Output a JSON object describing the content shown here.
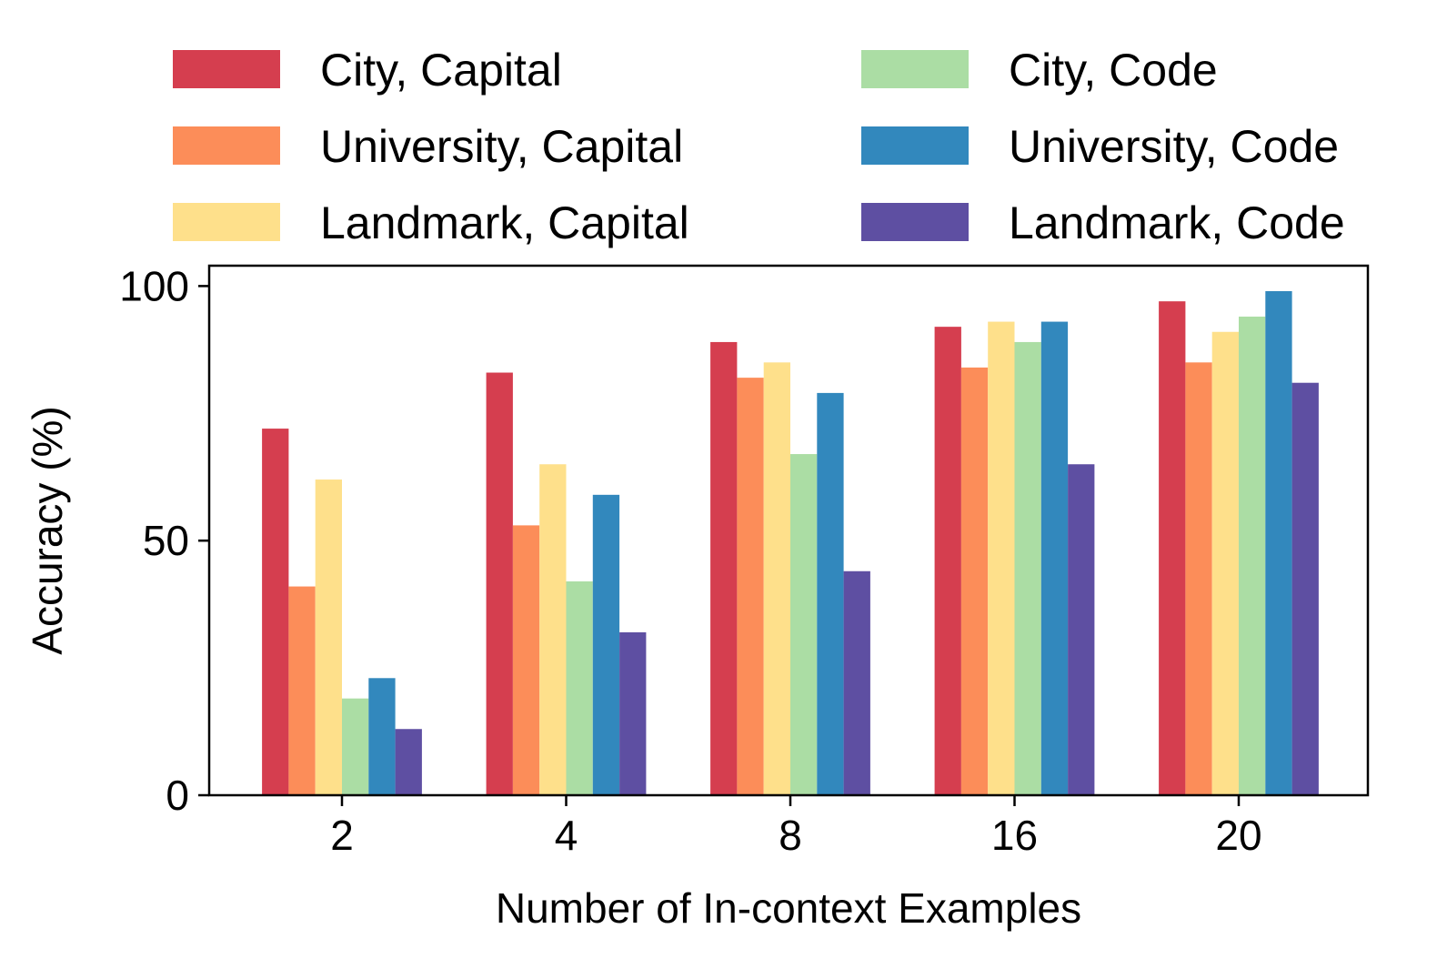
{
  "chart_data": {
    "type": "bar",
    "title": "",
    "xlabel": "Number of In-context Examples",
    "ylabel": "Accuracy (%)",
    "categories": [
      "2",
      "4",
      "8",
      "16",
      "20"
    ],
    "ylim": [
      0,
      104
    ],
    "yticks": [
      0,
      50,
      100
    ],
    "ytick_labels": [
      "0",
      "50",
      "100"
    ],
    "grid": false,
    "legend_position": "top, two columns",
    "series": [
      {
        "name": "City, Capital",
        "color": "#d53e4f",
        "values": [
          72,
          83,
          89,
          92,
          97
        ]
      },
      {
        "name": "University, Capital",
        "color": "#fc8d59",
        "values": [
          41,
          53,
          82,
          84,
          85
        ]
      },
      {
        "name": "Landmark, Capital",
        "color": "#fee08b",
        "values": [
          62,
          65,
          85,
          93,
          91
        ]
      },
      {
        "name": "City, Code",
        "color": "#abdda4",
        "values": [
          19,
          42,
          67,
          89,
          94
        ]
      },
      {
        "name": "University, Code",
        "color": "#3288bd",
        "values": [
          23,
          59,
          79,
          93,
          99
        ]
      },
      {
        "name": "Landmark, Code",
        "color": "#5e4fa2",
        "values": [
          13,
          32,
          44,
          65,
          81
        ]
      }
    ]
  }
}
